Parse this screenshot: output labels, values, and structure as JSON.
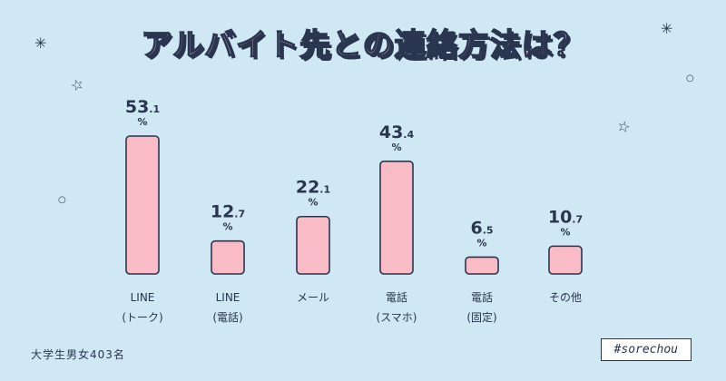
{
  "title": "アルバイト先との連絡方法は？",
  "sample_note": "大学生男女403名",
  "hashtag": "#sorechou",
  "colors": {
    "background": "#cfe8f3",
    "bar_fill": "#f9bcc6",
    "ink": "#2a3550"
  },
  "chart_data": {
    "type": "bar",
    "title": "アルバイト先との連絡方法は？",
    "categories": [
      [
        "LINE",
        "(トーク)"
      ],
      [
        "LINE",
        "(電話)"
      ],
      [
        "メール",
        ""
      ],
      [
        "電話",
        "(スマホ)"
      ],
      [
        "電話",
        "(固定)"
      ],
      [
        "その他",
        ""
      ]
    ],
    "values": [
      53.1,
      12.7,
      22.1,
      43.4,
      6.5,
      10.7
    ],
    "unit": "%",
    "ylim": [
      0,
      53.1
    ],
    "grid": false,
    "legend": "none"
  }
}
